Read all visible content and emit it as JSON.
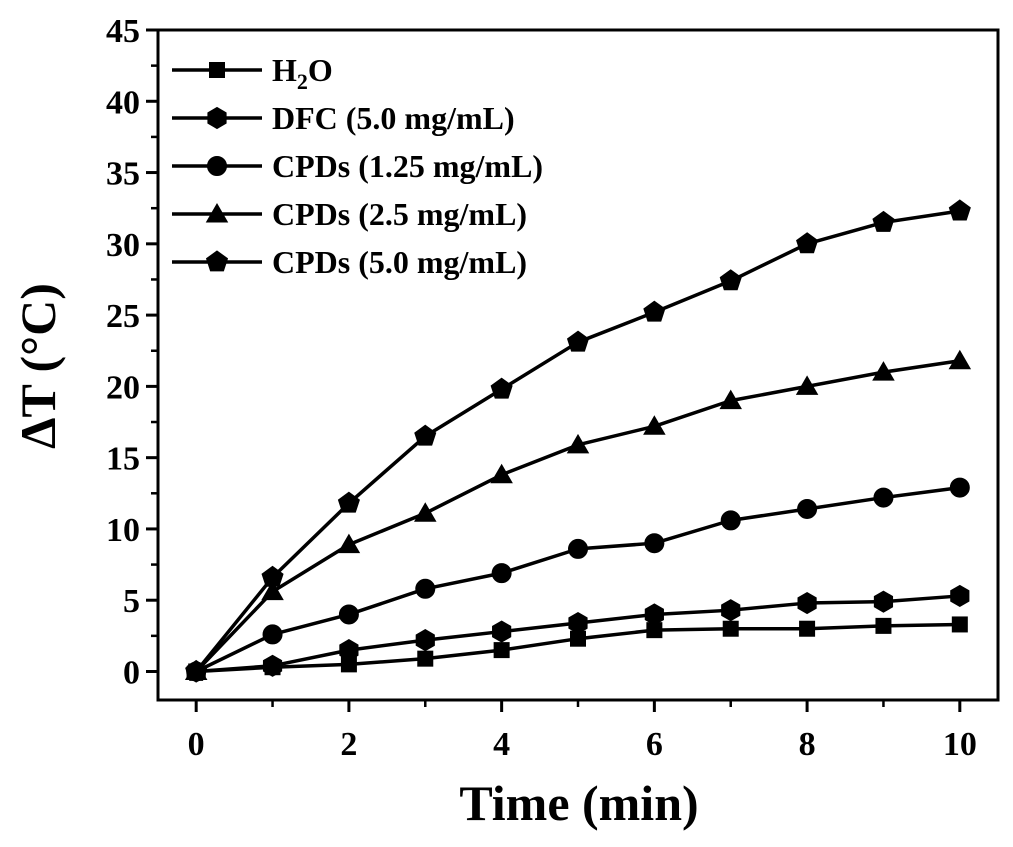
{
  "chart_data": {
    "type": "line",
    "xlabel": "Time (min)",
    "ylabel": "ΔT (°C)",
    "xlim": [
      -0.5,
      10.5
    ],
    "ylim": [
      -2,
      45
    ],
    "xticks": [
      "0",
      "2",
      "4",
      "6",
      "8",
      "10"
    ],
    "yticks": [
      "0",
      "5",
      "10",
      "15",
      "20",
      "25",
      "30",
      "35",
      "40",
      "45"
    ],
    "x": [
      0,
      1,
      2,
      3,
      4,
      5,
      6,
      7,
      8,
      9,
      10
    ],
    "legend_position": "top-left",
    "grid": false,
    "series": [
      {
        "name_main": "H",
        "name_sub": "2",
        "name_tail": "O",
        "marker": "square",
        "values": [
          0,
          0.3,
          0.5,
          0.9,
          1.5,
          2.3,
          2.9,
          3.0,
          3.0,
          3.2,
          3.3
        ]
      },
      {
        "name_main": "DFC (5.0 mg/mL)",
        "marker": "hexagon",
        "values": [
          0,
          0.4,
          1.5,
          2.2,
          2.8,
          3.4,
          4.0,
          4.3,
          4.8,
          4.9,
          5.3
        ]
      },
      {
        "name_main": "CPDs (1.25 mg/mL)",
        "marker": "circle",
        "values": [
          0,
          2.6,
          4.0,
          5.8,
          6.9,
          8.6,
          9.0,
          10.6,
          11.4,
          12.2,
          12.9
        ]
      },
      {
        "name_main": "CPDs (2.5 mg/mL)",
        "marker": "triangle",
        "values": [
          0,
          5.6,
          8.9,
          11.1,
          13.8,
          15.9,
          17.2,
          19.0,
          20.0,
          21.0,
          21.8
        ]
      },
      {
        "name_main": "CPDs (5.0 mg/mL)",
        "marker": "pentagon",
        "values": [
          0,
          6.6,
          11.8,
          16.5,
          19.8,
          23.1,
          25.2,
          27.4,
          30.0,
          31.5,
          32.3
        ]
      }
    ]
  }
}
